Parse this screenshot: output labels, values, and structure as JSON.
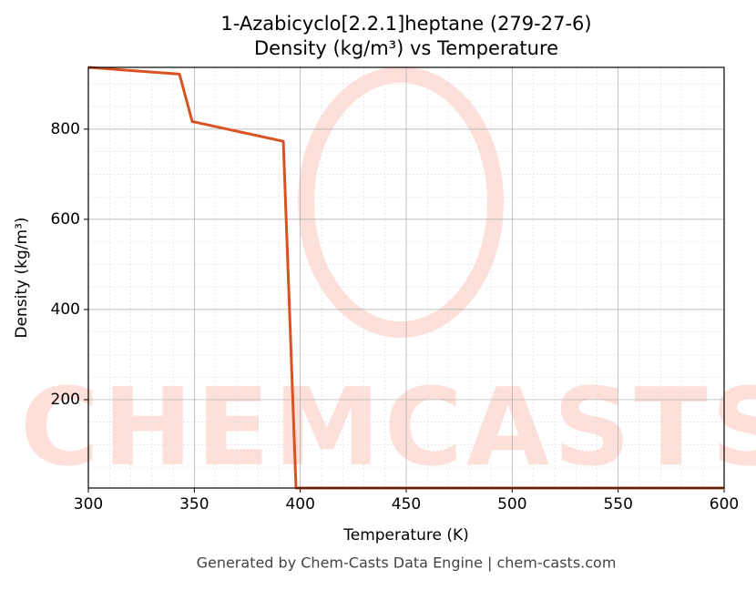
{
  "chart_data": {
    "type": "line",
    "title": "1-Azabicyclo[2.2.1]heptane (279-27-6)",
    "subtitle": "Density (kg/m³) vs Temperature",
    "x_label": "Temperature (K)",
    "y_label": "Density (kg/m³)",
    "footer": "Generated by Chem-Casts Data Engine | chem-casts.com",
    "watermark": "CHEMCASTS",
    "x": [
      300,
      343,
      349,
      392,
      398,
      600
    ],
    "series": [
      {
        "name": "Density",
        "color": "#d95322",
        "values": [
          937,
          922,
          817,
          773,
          4,
          4
        ]
      }
    ],
    "xlim": [
      300,
      600
    ],
    "xticks": [
      300,
      350,
      400,
      450,
      500,
      550,
      600
    ],
    "xminor": [
      310,
      320,
      330,
      340,
      360,
      370,
      380,
      390,
      410,
      420,
      430,
      440,
      460,
      470,
      480,
      490,
      510,
      520,
      530,
      540,
      560,
      570,
      580,
      590
    ],
    "ylim": [
      4,
      937
    ],
    "yticks": [
      200,
      400,
      600,
      800
    ],
    "yminor": [
      50,
      100,
      150,
      250,
      300,
      350,
      450,
      500,
      550,
      650,
      700,
      750,
      850,
      900
    ],
    "grid": true
  }
}
